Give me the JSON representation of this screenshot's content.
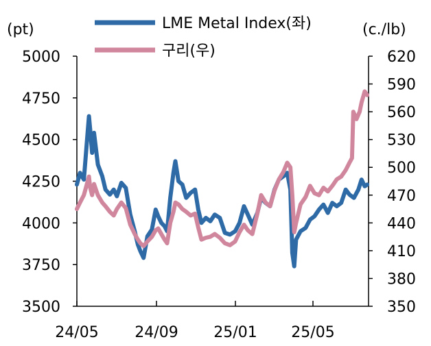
{
  "chart_data": {
    "type": "line",
    "left_axis": {
      "unit": "(pt)",
      "ticks": [
        5000,
        4750,
        4500,
        4250,
        4000,
        3750,
        3500
      ],
      "range": [
        3500,
        5000
      ]
    },
    "right_axis": {
      "unit": "(c./lb)",
      "ticks": [
        620,
        590,
        560,
        530,
        500,
        470,
        440,
        410,
        380,
        350
      ],
      "range": [
        350,
        620
      ]
    },
    "x_ticks": [
      "24/05",
      "24/09",
      "25/01",
      "25/05"
    ],
    "legend_position": "top",
    "grid": false,
    "x_range": [
      "2024-05",
      "2025-08"
    ],
    "series": [
      {
        "name": "LME Metal Index(좌)",
        "axis": "left",
        "color": "#2e6aa6",
        "points": [
          [
            "2024-05-01",
            4230
          ],
          [
            "2024-05-06",
            4300
          ],
          [
            "2024-05-12",
            4260
          ],
          [
            "2024-05-16",
            4450
          ],
          [
            "2024-05-20",
            4640
          ],
          [
            "2024-05-22",
            4560
          ],
          [
            "2024-05-25",
            4420
          ],
          [
            "2024-05-28",
            4540
          ],
          [
            "2024-06-03",
            4350
          ],
          [
            "2024-06-10",
            4280
          ],
          [
            "2024-06-15",
            4200
          ],
          [
            "2024-06-22",
            4170
          ],
          [
            "2024-06-28",
            4200
          ],
          [
            "2024-07-03",
            4160
          ],
          [
            "2024-07-10",
            4240
          ],
          [
            "2024-07-17",
            4210
          ],
          [
            "2024-07-24",
            4050
          ],
          [
            "2024-07-31",
            3950
          ],
          [
            "2024-08-05",
            3870
          ],
          [
            "2024-08-09",
            3830
          ],
          [
            "2024-08-14",
            3790
          ],
          [
            "2024-08-20",
            3920
          ],
          [
            "2024-08-27",
            3960
          ],
          [
            "2024-09-02",
            4080
          ],
          [
            "2024-09-06",
            4040
          ],
          [
            "2024-09-11",
            4000
          ],
          [
            "2024-09-16",
            3980
          ],
          [
            "2024-09-20",
            3950
          ],
          [
            "2024-09-25",
            4150
          ],
          [
            "2024-09-30",
            4300
          ],
          [
            "2024-10-03",
            4370
          ],
          [
            "2024-10-08",
            4250
          ],
          [
            "2024-10-14",
            4230
          ],
          [
            "2024-10-20",
            4150
          ],
          [
            "2024-10-27",
            4180
          ],
          [
            "2024-11-03",
            4200
          ],
          [
            "2024-11-08",
            4080
          ],
          [
            "2024-11-13",
            4000
          ],
          [
            "2024-11-20",
            4030
          ],
          [
            "2024-11-27",
            4010
          ],
          [
            "2024-12-04",
            4050
          ],
          [
            "2024-12-12",
            4030
          ],
          [
            "2024-12-20",
            3940
          ],
          [
            "2024-12-28",
            3930
          ],
          [
            "2025-01-05",
            3950
          ],
          [
            "2025-01-12",
            4000
          ],
          [
            "2025-01-19",
            4100
          ],
          [
            "2025-01-25",
            4050
          ],
          [
            "2025-02-01",
            3990
          ],
          [
            "2025-02-09",
            4060
          ],
          [
            "2025-02-15",
            4150
          ],
          [
            "2025-02-22",
            4120
          ],
          [
            "2025-03-01",
            4100
          ],
          [
            "2025-03-08",
            4200
          ],
          [
            "2025-03-15",
            4260
          ],
          [
            "2025-03-22",
            4280
          ],
          [
            "2025-03-28",
            4300
          ],
          [
            "2025-04-02",
            4200
          ],
          [
            "2025-04-05",
            3820
          ],
          [
            "2025-04-08",
            3740
          ],
          [
            "2025-04-11",
            3900
          ],
          [
            "2025-04-18",
            3950
          ],
          [
            "2025-04-26",
            3970
          ],
          [
            "2025-05-03",
            4020
          ],
          [
            "2025-05-10",
            4040
          ],
          [
            "2025-05-17",
            4080
          ],
          [
            "2025-05-24",
            4110
          ],
          [
            "2025-05-31",
            4060
          ],
          [
            "2025-06-07",
            4120
          ],
          [
            "2025-06-14",
            4100
          ],
          [
            "2025-06-21",
            4120
          ],
          [
            "2025-06-28",
            4200
          ],
          [
            "2025-07-04",
            4170
          ],
          [
            "2025-07-11",
            4150
          ],
          [
            "2025-07-18",
            4200
          ],
          [
            "2025-07-23",
            4260
          ],
          [
            "2025-07-28",
            4220
          ],
          [
            "2025-08-01",
            4230
          ]
        ]
      },
      {
        "name": "구리(우)",
        "axis": "right",
        "color": "#d0879d",
        "points": [
          [
            "2024-05-01",
            455
          ],
          [
            "2024-05-06",
            462
          ],
          [
            "2024-05-12",
            470
          ],
          [
            "2024-05-16",
            480
          ],
          [
            "2024-05-20",
            490
          ],
          [
            "2024-05-22",
            478
          ],
          [
            "2024-05-25",
            470
          ],
          [
            "2024-05-28",
            482
          ],
          [
            "2024-06-03",
            470
          ],
          [
            "2024-06-10",
            462
          ],
          [
            "2024-06-15",
            458
          ],
          [
            "2024-06-22",
            452
          ],
          [
            "2024-06-28",
            448
          ],
          [
            "2024-07-03",
            455
          ],
          [
            "2024-07-10",
            462
          ],
          [
            "2024-07-17",
            456
          ],
          [
            "2024-07-24",
            438
          ],
          [
            "2024-07-31",
            428
          ],
          [
            "2024-08-05",
            422
          ],
          [
            "2024-08-09",
            418
          ],
          [
            "2024-08-14",
            415
          ],
          [
            "2024-08-20",
            420
          ],
          [
            "2024-08-27",
            425
          ],
          [
            "2024-09-02",
            432
          ],
          [
            "2024-09-06",
            434
          ],
          [
            "2024-09-11",
            428
          ],
          [
            "2024-09-16",
            422
          ],
          [
            "2024-09-20",
            418
          ],
          [
            "2024-09-25",
            440
          ],
          [
            "2024-09-30",
            452
          ],
          [
            "2024-10-03",
            462
          ],
          [
            "2024-10-08",
            460
          ],
          [
            "2024-10-14",
            455
          ],
          [
            "2024-10-20",
            452
          ],
          [
            "2024-10-27",
            448
          ],
          [
            "2024-11-03",
            450
          ],
          [
            "2024-11-08",
            435
          ],
          [
            "2024-11-13",
            422
          ],
          [
            "2024-11-20",
            424
          ],
          [
            "2024-11-27",
            425
          ],
          [
            "2024-12-04",
            428
          ],
          [
            "2024-12-12",
            424
          ],
          [
            "2024-12-20",
            418
          ],
          [
            "2024-12-28",
            416
          ],
          [
            "2025-01-05",
            420
          ],
          [
            "2025-01-12",
            430
          ],
          [
            "2025-01-19",
            438
          ],
          [
            "2025-01-25",
            432
          ],
          [
            "2025-02-01",
            428
          ],
          [
            "2025-02-09",
            450
          ],
          [
            "2025-02-15",
            470
          ],
          [
            "2025-02-22",
            462
          ],
          [
            "2025-03-01",
            458
          ],
          [
            "2025-03-08",
            475
          ],
          [
            "2025-03-15",
            487
          ],
          [
            "2025-03-22",
            495
          ],
          [
            "2025-03-28",
            505
          ],
          [
            "2025-04-02",
            500
          ],
          [
            "2025-04-05",
            470
          ],
          [
            "2025-04-08",
            430
          ],
          [
            "2025-04-11",
            440
          ],
          [
            "2025-04-18",
            460
          ],
          [
            "2025-04-26",
            468
          ],
          [
            "2025-05-03",
            480
          ],
          [
            "2025-05-10",
            472
          ],
          [
            "2025-05-17",
            470
          ],
          [
            "2025-05-24",
            478
          ],
          [
            "2025-05-31",
            474
          ],
          [
            "2025-06-07",
            480
          ],
          [
            "2025-06-14",
            487
          ],
          [
            "2025-06-21",
            490
          ],
          [
            "2025-06-28",
            497
          ],
          [
            "2025-07-04",
            505
          ],
          [
            "2025-07-08",
            510
          ],
          [
            "2025-07-10",
            560
          ],
          [
            "2025-07-15",
            552
          ],
          [
            "2025-07-20",
            560
          ],
          [
            "2025-07-23",
            570
          ],
          [
            "2025-07-28",
            582
          ],
          [
            "2025-08-01",
            578
          ]
        ]
      }
    ]
  }
}
